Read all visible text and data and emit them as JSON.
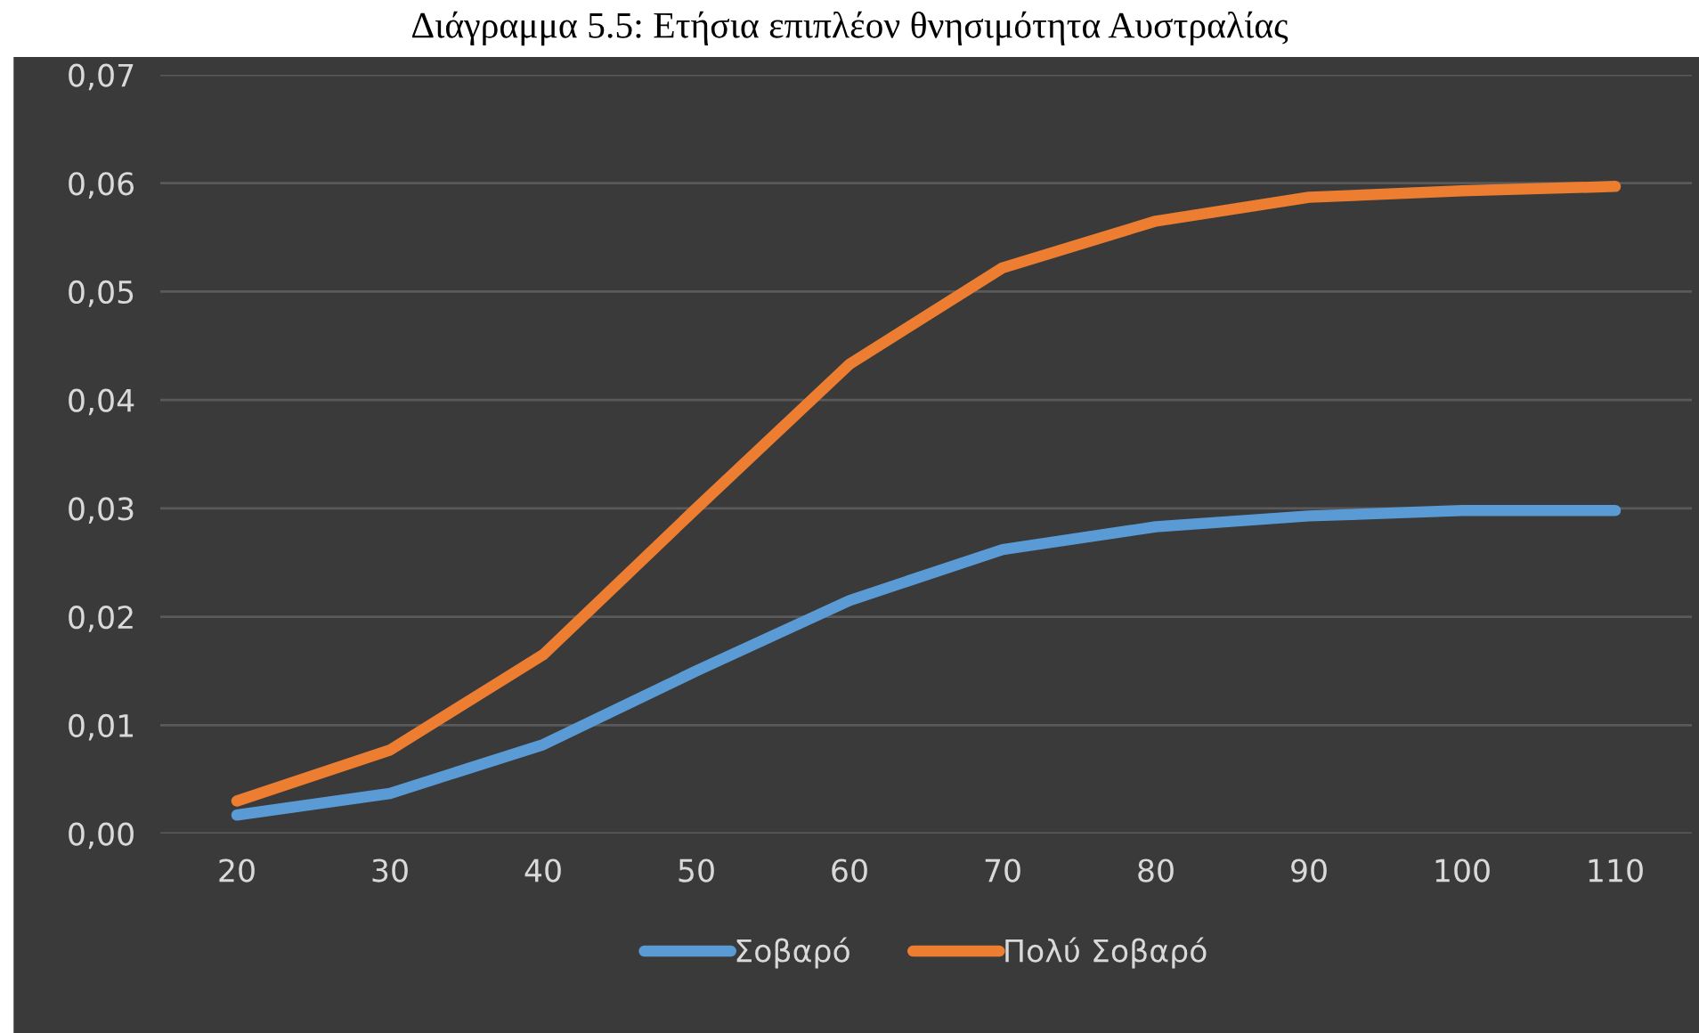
{
  "chart_data": {
    "type": "line",
    "title": "Διάγραμμα 5.5: Ετήσια επιπλέον θνησιμότητα Αυστραλίας",
    "categories": [
      "20",
      "30",
      "40",
      "50",
      "60",
      "70",
      "80",
      "90",
      "100",
      "110"
    ],
    "series": [
      {
        "name": "Σοβαρό",
        "color": "#5b9bd5",
        "values": [
          0.0017,
          0.0037,
          0.0082,
          0.015,
          0.0215,
          0.0262,
          0.0283,
          0.0293,
          0.0298,
          0.0298
        ]
      },
      {
        "name": "Πολύ Σοβαρό",
        "color": "#ed7d31",
        "values": [
          0.003,
          0.0077,
          0.0165,
          0.03,
          0.0433,
          0.0522,
          0.0565,
          0.0587,
          0.0593,
          0.0597
        ]
      }
    ],
    "ylim": [
      0,
      0.07
    ],
    "yticks": [
      {
        "value": 0,
        "label": "0,00"
      },
      {
        "value": 0.01,
        "label": "0,01"
      },
      {
        "value": 0.02,
        "label": "0,02"
      },
      {
        "value": 0.03,
        "label": "0,03"
      },
      {
        "value": 0.04,
        "label": "0,04"
      },
      {
        "value": 0.05,
        "label": "0,05"
      },
      {
        "value": 0.06,
        "label": "0,06"
      },
      {
        "value": 0.07,
        "label": "0,07"
      }
    ],
    "grid": "y",
    "legend": "bottom",
    "marker": "none",
    "line_style": "solid"
  }
}
